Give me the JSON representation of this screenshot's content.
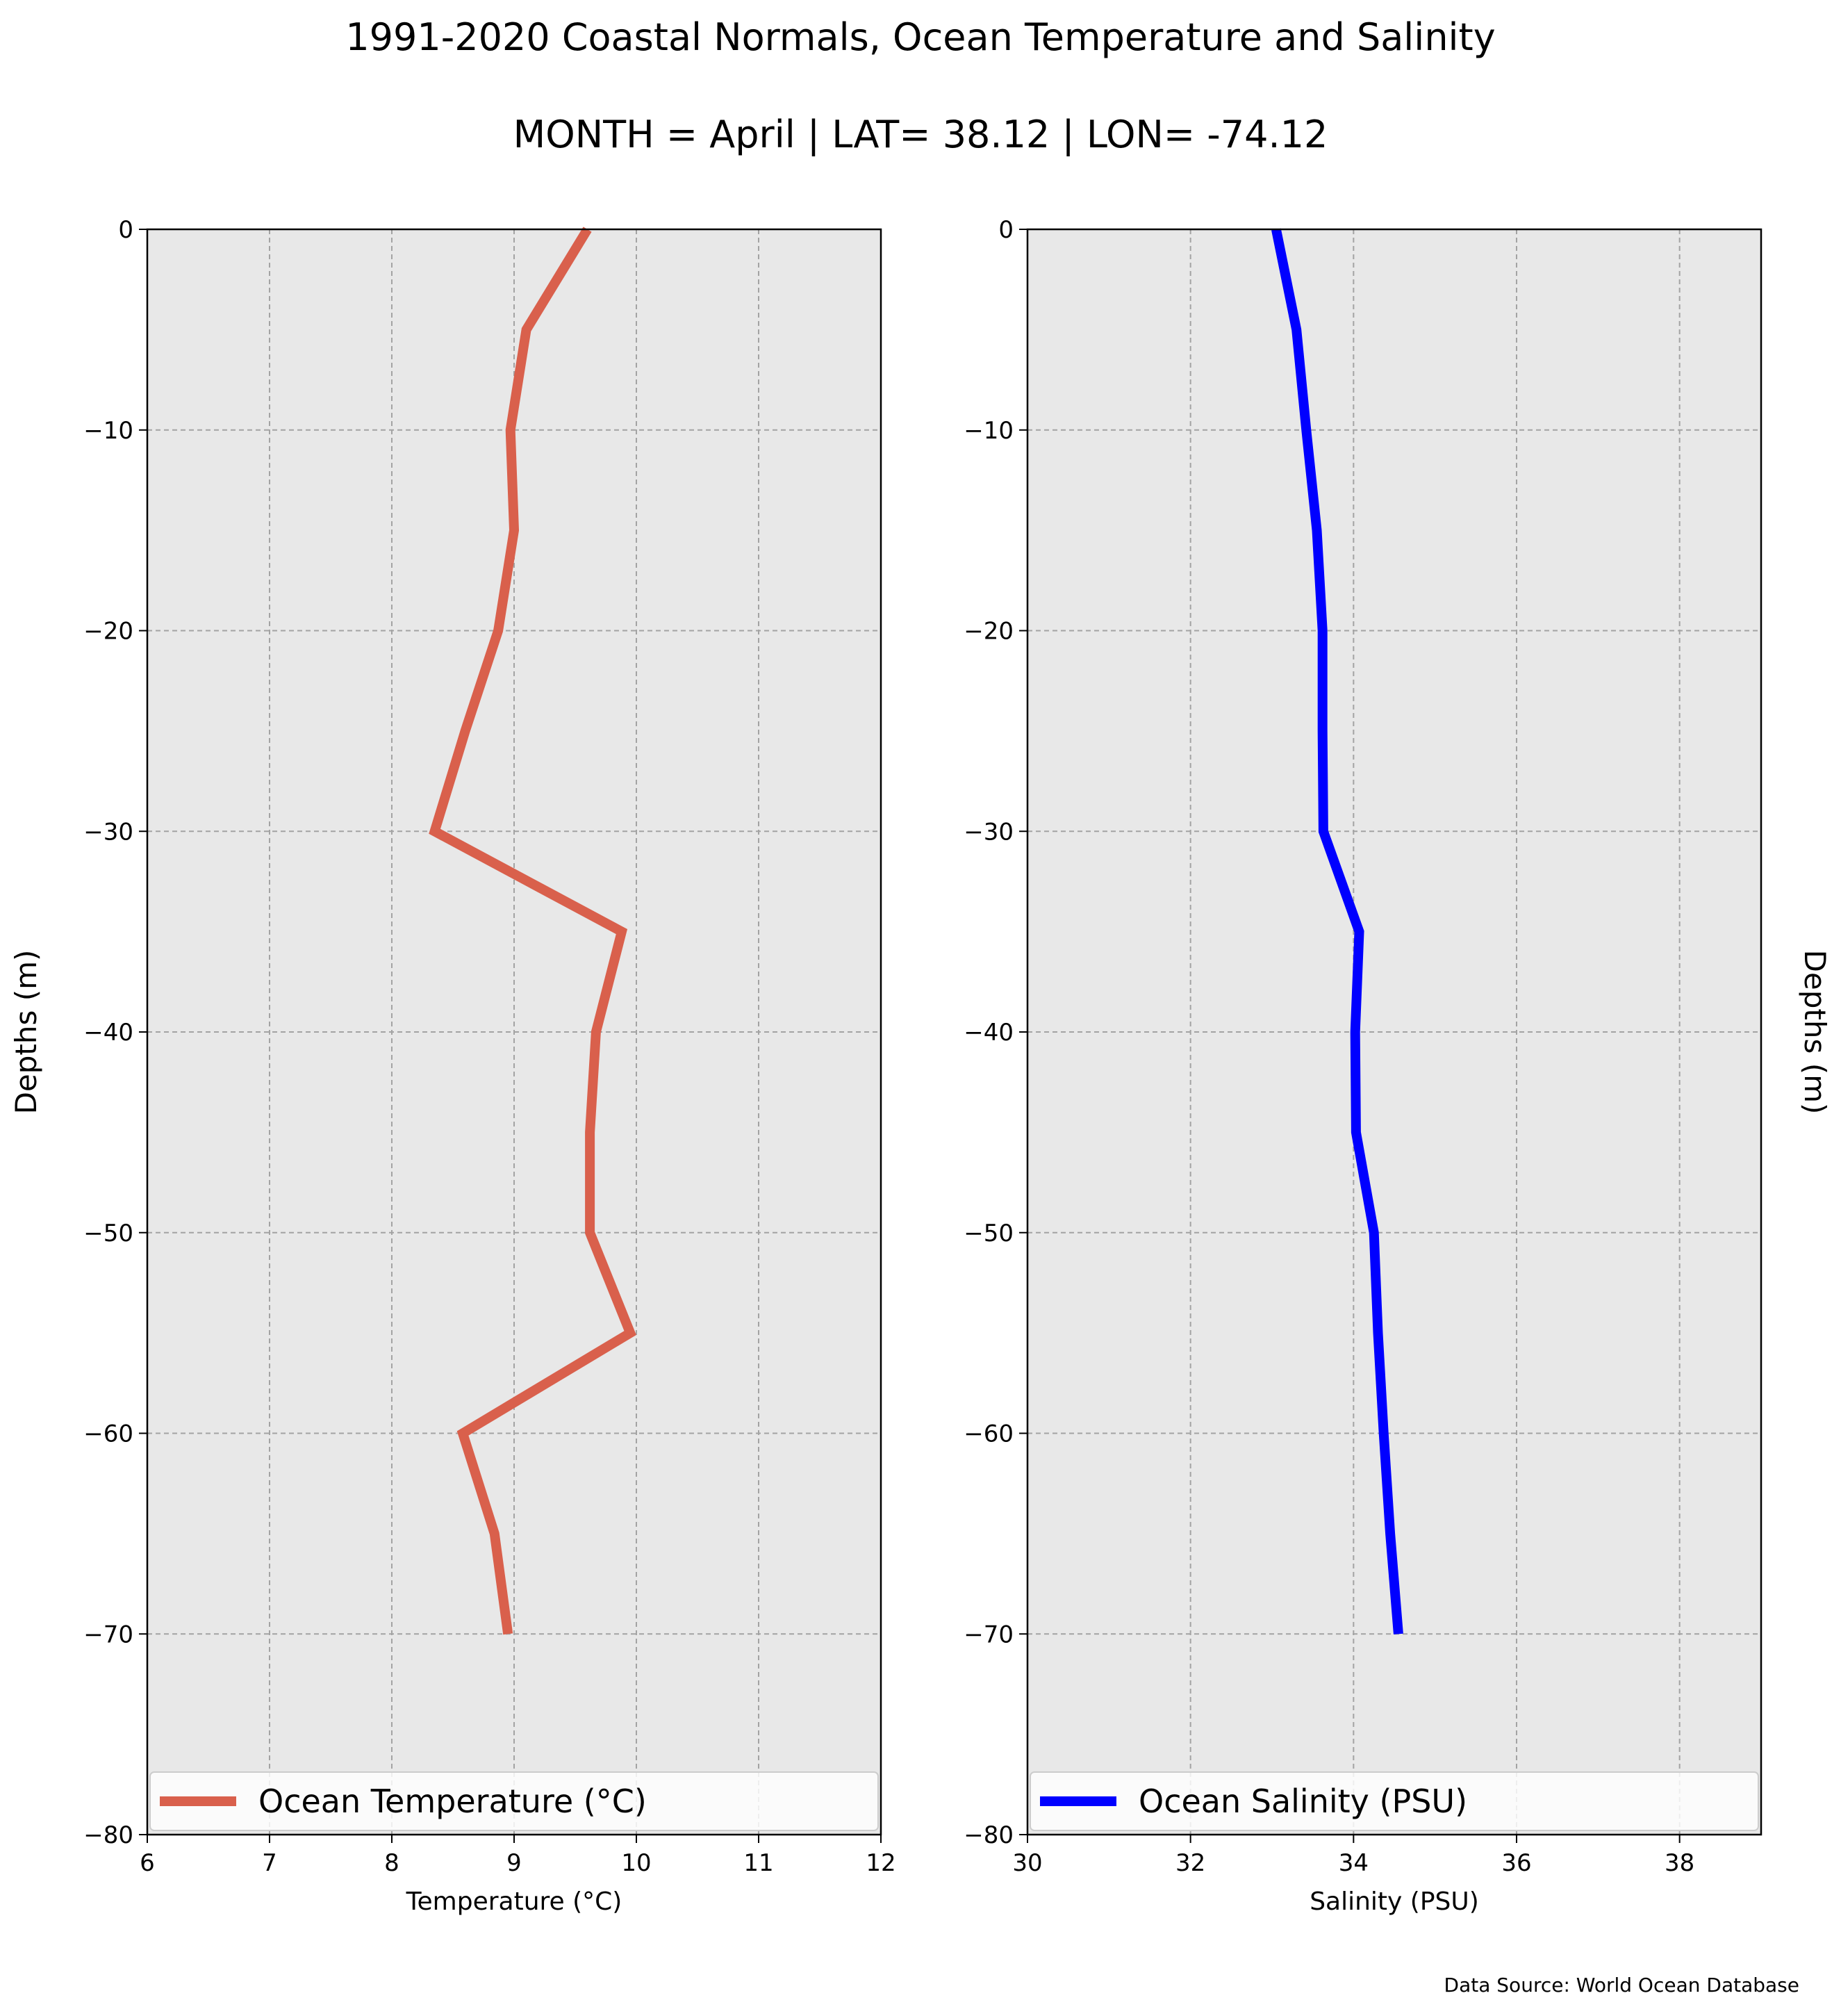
{
  "figure": {
    "title": "1991-2020 Coastal Normals, Ocean Temperature and Salinity",
    "subtitle": "MONTH = April | LAT= 38.12 | LON= -74.12",
    "source": "Data Source: World Ocean Database"
  },
  "chart_data": [
    {
      "type": "line",
      "orientation": "vertical-profile",
      "xlabel": "Temperature (°C)",
      "ylabel": "Depths (m)",
      "xlim": [
        6,
        12
      ],
      "ylim": [
        -80,
        0
      ],
      "x_ticks": [
        "6",
        "7",
        "8",
        "9",
        "10",
        "11",
        "12"
      ],
      "y_ticks": [
        "0",
        "−10",
        "−20",
        "−30",
        "−40",
        "−50",
        "−60",
        "−70",
        "−80"
      ],
      "grid": true,
      "legend_position": "bottom",
      "series": [
        {
          "name": "Ocean Temperature (°C)",
          "color": "#d9604c",
          "points": [
            {
              "x": 9.6,
              "y": 0
            },
            {
              "x": 9.1,
              "y": -5
            },
            {
              "x": 8.97,
              "y": -10
            },
            {
              "x": 9.0,
              "y": -15
            },
            {
              "x": 8.87,
              "y": -20
            },
            {
              "x": 8.6,
              "y": -25
            },
            {
              "x": 8.35,
              "y": -30
            },
            {
              "x": 9.88,
              "y": -35
            },
            {
              "x": 9.67,
              "y": -40
            },
            {
              "x": 9.62,
              "y": -45
            },
            {
              "x": 9.62,
              "y": -50
            },
            {
              "x": 9.95,
              "y": -55
            },
            {
              "x": 8.58,
              "y": -60
            },
            {
              "x": 8.84,
              "y": -65
            },
            {
              "x": 8.95,
              "y": -70
            }
          ]
        }
      ]
    },
    {
      "type": "line",
      "orientation": "vertical-profile",
      "xlabel": "Salinity (PSU)",
      "ylabel": "Depths (m)",
      "xlim": [
        30,
        39
      ],
      "ylim": [
        -80,
        0
      ],
      "x_ticks": [
        "30",
        "32",
        "34",
        "36",
        "38"
      ],
      "y_ticks": [
        "0",
        "−10",
        "−20",
        "−30",
        "−40",
        "−50",
        "−60",
        "−70",
        "−80"
      ],
      "grid": true,
      "legend_position": "bottom",
      "series": [
        {
          "name": "Ocean Salinity (PSU)",
          "color": "#0000ff",
          "points": [
            {
              "x": 33.05,
              "y": 0
            },
            {
              "x": 33.3,
              "y": -5
            },
            {
              "x": 33.42,
              "y": -10
            },
            {
              "x": 33.55,
              "y": -15
            },
            {
              "x": 33.62,
              "y": -20
            },
            {
              "x": 33.62,
              "y": -25
            },
            {
              "x": 33.63,
              "y": -30
            },
            {
              "x": 34.07,
              "y": -35
            },
            {
              "x": 34.02,
              "y": -40
            },
            {
              "x": 34.03,
              "y": -45
            },
            {
              "x": 34.25,
              "y": -50
            },
            {
              "x": 34.3,
              "y": -55
            },
            {
              "x": 34.37,
              "y": -60
            },
            {
              "x": 34.45,
              "y": -65
            },
            {
              "x": 34.55,
              "y": -70
            }
          ]
        }
      ]
    }
  ]
}
